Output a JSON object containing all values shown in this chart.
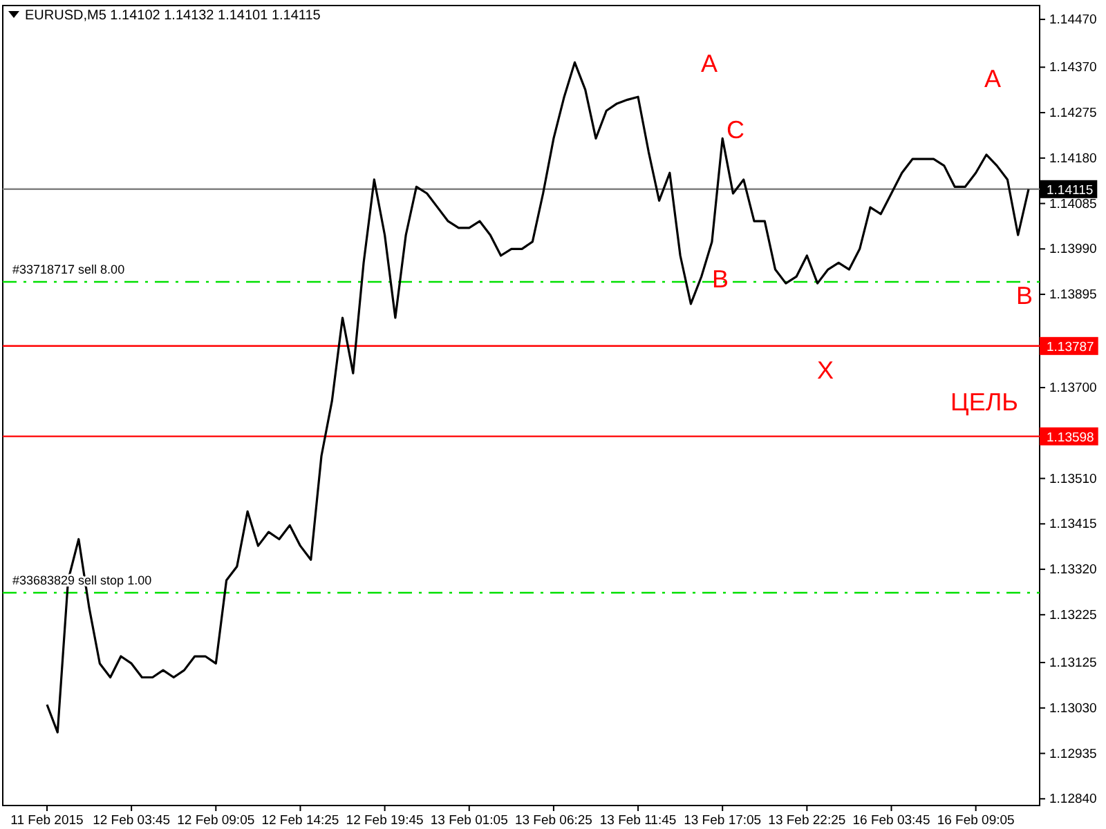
{
  "chart_data": {
    "type": "line",
    "title": "EURUSD,M5  1.14102 1.14132 1.14101 1.14115",
    "categories": [
      "11 Feb 2015",
      null,
      null,
      null,
      null,
      null,
      null,
      null,
      "12 Feb 03:45",
      null,
      null,
      null,
      null,
      null,
      null,
      null,
      "12 Feb 09:05",
      null,
      null,
      null,
      null,
      null,
      null,
      null,
      "12 Feb 14:25",
      null,
      null,
      null,
      null,
      null,
      null,
      null,
      "12 Feb 19:45",
      null,
      null,
      null,
      null,
      null,
      null,
      null,
      "13 Feb 01:05",
      null,
      null,
      null,
      null,
      null,
      null,
      null,
      "13 Feb 06:25",
      null,
      null,
      null,
      null,
      null,
      null,
      null,
      "13 Feb 11:45",
      null,
      null,
      null,
      null,
      null,
      null,
      null,
      "13 Feb 17:05",
      null,
      null,
      null,
      null,
      null,
      null,
      null,
      "13 Feb 22:25",
      null,
      null,
      null,
      null,
      null,
      null,
      null,
      "16 Feb 03:45",
      null,
      null,
      null,
      null,
      null,
      null,
      null,
      "16 Feb 09:05",
      null,
      null,
      null,
      null,
      null
    ],
    "series": [
      {
        "color": "#000000",
        "values": [
          1.13037,
          1.12979,
          1.13297,
          1.13383,
          1.13239,
          1.13123,
          1.13094,
          1.13138,
          1.13123,
          1.13094,
          1.13094,
          1.13109,
          1.13094,
          1.13109,
          1.13138,
          1.13138,
          1.13123,
          1.13297,
          1.13326,
          1.13441,
          1.13369,
          1.13398,
          1.13383,
          1.13412,
          1.13369,
          1.1334,
          1.13557,
          1.13672,
          1.13846,
          1.1373,
          1.13961,
          1.14135,
          1.14019,
          1.13846,
          1.14019,
          1.1412,
          1.14106,
          1.14077,
          1.14048,
          1.14034,
          1.14034,
          1.14048,
          1.14019,
          1.13976,
          1.1399,
          1.1399,
          1.14005,
          1.14106,
          1.14221,
          1.14308,
          1.1438,
          1.14323,
          1.14221,
          1.14279,
          1.14294,
          1.14302,
          1.14308,
          1.14193,
          1.14091,
          1.14149,
          1.13976,
          1.13875,
          1.13932,
          1.14005,
          1.14221,
          1.14106,
          1.14135,
          1.14048,
          1.14048,
          1.13947,
          1.13918,
          1.13932,
          1.13976,
          1.13918,
          1.13947,
          1.13961,
          1.13947,
          1.1399,
          1.14077,
          1.14063,
          1.14106,
          1.14149,
          1.14178,
          1.14178,
          1.14178,
          1.14164,
          1.1412,
          1.1412,
          1.14149,
          1.14187,
          1.14164,
          1.14135,
          1.14019,
          1.14115
        ]
      }
    ],
    "ylim": [
      1.12826,
      1.14499
    ],
    "yticks": [
      {
        "value": 1.1447,
        "label": "1.14470"
      },
      {
        "value": 1.1437,
        "label": "1.14370"
      },
      1.14275,
      {
        "value": 1.1418,
        "label": "1.14180"
      },
      1.14085,
      {
        "value": 1.1399,
        "label": "1.13990"
      },
      1.13895,
      {
        "value": 1.138,
        "label": null
      },
      {
        "value": 1.137,
        "label": "1.13700"
      },
      {
        "value": 1.13605,
        "label": null
      },
      {
        "value": 1.1351,
        "label": "1.13510"
      },
      1.13415,
      {
        "value": 1.1332,
        "label": "1.13320"
      },
      1.13225,
      1.13125,
      {
        "value": 1.1303,
        "label": "1.13030"
      },
      1.12935,
      {
        "value": 1.1284,
        "label": "1.12840"
      }
    ],
    "ref_lines": [
      {
        "axis": "y",
        "value": 1.14115,
        "label": "1.14115",
        "color": "#808080",
        "line_style": "solid"
      },
      {
        "axis": "y",
        "value": 1.13787,
        "label": "1.13787",
        "color": "#ff0000",
        "line_style": "solid"
      },
      {
        "axis": "y",
        "value": 1.13598,
        "label": "1.13598",
        "color": "#ff0000",
        "line_style": "solid"
      },
      {
        "axis": "y",
        "value": 1.13921,
        "label": "#33718717 sell 8.00",
        "color": "#00e000",
        "line_style": "dashed"
      },
      {
        "axis": "y",
        "value": 1.13271,
        "label": "#33683829 sell stop 1.00",
        "color": "#00e000",
        "line_style": "dashed"
      }
    ],
    "annotations": [
      "A",
      "C",
      "B",
      "X",
      "A",
      "B",
      "ЦЕЛЬ"
    ],
    "grid": false,
    "marker": "none",
    "line_style": "solid"
  }
}
